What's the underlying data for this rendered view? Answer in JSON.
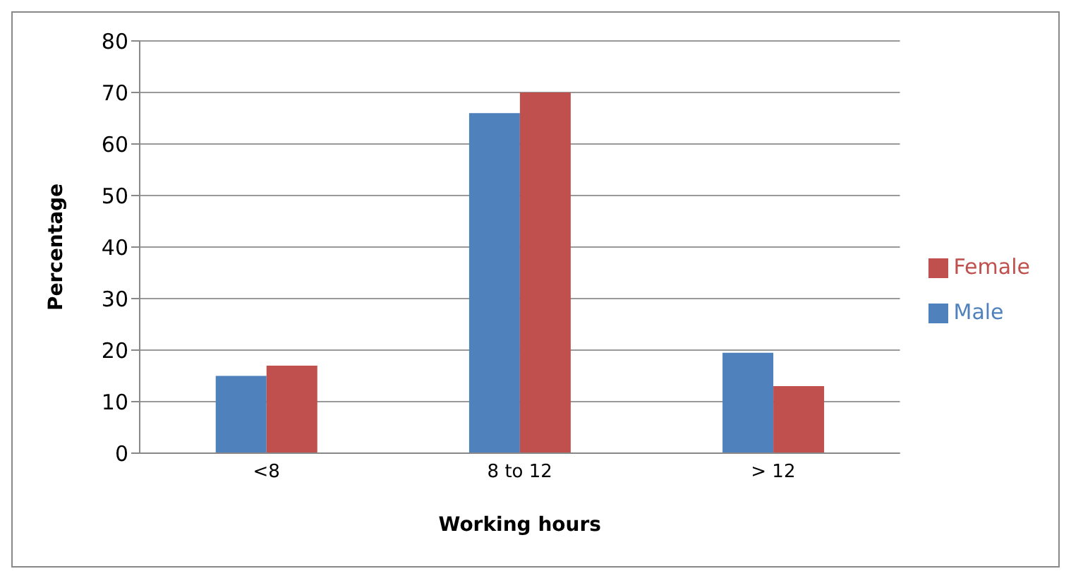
{
  "chart_data": {
    "type": "bar",
    "xlabel": "Working hours",
    "ylabel": "Percentage",
    "categories": [
      "<8",
      "8 to 12",
      "> 12"
    ],
    "series": [
      {
        "name": "Male",
        "color": "#4f81bd",
        "values": [
          15,
          66,
          19.5
        ]
      },
      {
        "name": "Female",
        "color": "#c0504d",
        "values": [
          17,
          70,
          13
        ]
      }
    ],
    "ylim": [
      0,
      80
    ],
    "yticks": [
      0,
      10,
      20,
      30,
      40,
      50,
      60,
      70,
      80
    ],
    "grid": "y",
    "legend": "right"
  }
}
